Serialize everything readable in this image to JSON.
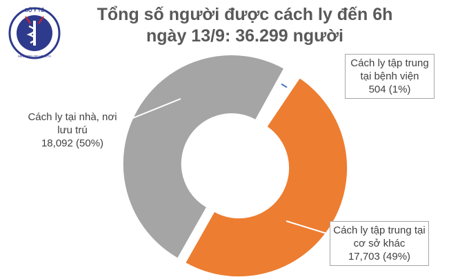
{
  "logo": {
    "top": "BỘ Y TẾ",
    "bottom": "MINISTRY OF HEALTH"
  },
  "chart_data": {
    "type": "donut",
    "title": "Tổng số người được cách ly đến 6h ngày 13/9: 36.299 người",
    "categories": [
      "Cách ly tập trung tại bệnh viện",
      "Cách ly tập trung tại cơ sở khác",
      "Cách ly tại nhà, nơi lưu trú"
    ],
    "values": [
      504,
      17703,
      18092
    ],
    "value_labels": [
      "504 (1%)",
      "17,703 (49%)",
      "18,092 (50%)"
    ],
    "colors": [
      "#4472c4",
      "#ed7d31",
      "#a5a5a5"
    ]
  }
}
